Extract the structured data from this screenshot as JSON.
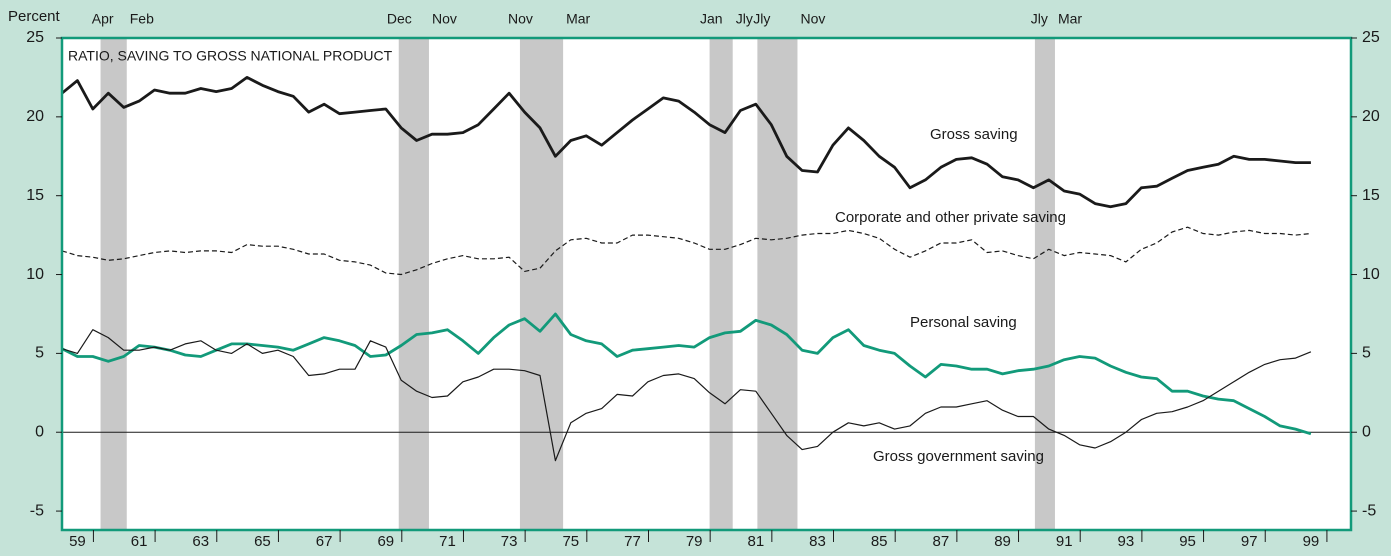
{
  "chart_data": {
    "type": "line",
    "title": "RATIO, SAVING TO GROSS NATIONAL PRODUCT",
    "y_axis_label": "Percent",
    "xlim": [
      1959,
      2000.8
    ],
    "xticks": [
      {
        "value": 1959.5,
        "label": "59"
      },
      {
        "value": 1961.5,
        "label": "61"
      },
      {
        "value": 1963.5,
        "label": "63"
      },
      {
        "value": 1965.5,
        "label": "65"
      },
      {
        "value": 1967.5,
        "label": "67"
      },
      {
        "value": 1969.5,
        "label": "69"
      },
      {
        "value": 1971.5,
        "label": "71"
      },
      {
        "value": 1973.5,
        "label": "73"
      },
      {
        "value": 1975.5,
        "label": "75"
      },
      {
        "value": 1977.5,
        "label": "77"
      },
      {
        "value": 1979.5,
        "label": "79"
      },
      {
        "value": 1981.5,
        "label": "81"
      },
      {
        "value": 1983.5,
        "label": "83"
      },
      {
        "value": 1985.5,
        "label": "85"
      },
      {
        "value": 1987.5,
        "label": "87"
      },
      {
        "value": 1989.5,
        "label": "89"
      },
      {
        "value": 1991.5,
        "label": "91"
      },
      {
        "value": 1993.5,
        "label": "93"
      },
      {
        "value": 1995.5,
        "label": "95"
      },
      {
        "value": 1997.5,
        "label": "97"
      },
      {
        "value": 1999.5,
        "label": "99"
      }
    ],
    "ylim": [
      -6.2,
      25
    ],
    "yticks": [
      -5,
      0,
      5,
      10,
      15,
      20,
      25
    ],
    "y2lim": [
      -6.2,
      25
    ],
    "y2ticks": [
      -5,
      0,
      5,
      10,
      15,
      20,
      25
    ],
    "recessions": [
      {
        "start": 1960.25,
        "end": 1961.1,
        "start_label": "Apr",
        "end_label": "Feb"
      },
      {
        "start": 1969.92,
        "end": 1970.9,
        "start_label": "Dec",
        "end_label": "Nov"
      },
      {
        "start": 1973.85,
        "end": 1975.25,
        "start_label": "Nov",
        "end_label": "Mar"
      },
      {
        "start": 1980.0,
        "end": 1980.75,
        "start_label": "Jan",
        "end_label": "Jly"
      },
      {
        "start": 1981.55,
        "end": 1982.85,
        "start_label": "Jly",
        "end_label": "Nov"
      },
      {
        "start": 1990.55,
        "end": 1991.2,
        "start_label": "Jly",
        "end_label": "Mar"
      }
    ],
    "x": [
      1959,
      1959.5,
      1960,
      1960.5,
      1961,
      1961.5,
      1962,
      1962.5,
      1963,
      1963.5,
      1964,
      1964.5,
      1965,
      1965.5,
      1966,
      1966.5,
      1967,
      1967.5,
      1968,
      1968.5,
      1969,
      1969.5,
      1970,
      1970.5,
      1971,
      1971.5,
      1972,
      1972.5,
      1973,
      1973.5,
      1974,
      1974.5,
      1975,
      1975.5,
      1976,
      1976.5,
      1977,
      1977.5,
      1978,
      1978.5,
      1979,
      1979.5,
      1980,
      1980.5,
      1981,
      1981.5,
      1982,
      1982.5,
      1983,
      1983.5,
      1984,
      1984.5,
      1985,
      1985.5,
      1986,
      1986.5,
      1987,
      1987.5,
      1988,
      1988.5,
      1989,
      1989.5,
      1990,
      1990.5,
      1991,
      1991.5,
      1992,
      1992.5,
      1993,
      1993.5,
      1994,
      1994.5,
      1995,
      1995.5,
      1996,
      1996.5,
      1997,
      1997.5,
      1998,
      1998.5,
      1999,
      1999.5
    ],
    "series": [
      {
        "name": "Gross saving",
        "color": "#1a1a1a",
        "style": "thick",
        "values": [
          21.5,
          22.3,
          20.5,
          21.5,
          20.6,
          21,
          21.7,
          21.5,
          21.5,
          21.8,
          21.6,
          21.8,
          22.5,
          22,
          21.6,
          21.3,
          20.3,
          20.8,
          20.2,
          20.3,
          20.4,
          20.5,
          19.3,
          18.5,
          18.9,
          18.9,
          19,
          19.5,
          20.5,
          21.5,
          20.3,
          19.3,
          17.5,
          18.5,
          18.8,
          18.2,
          19,
          19.8,
          20.5,
          21.2,
          21,
          20.3,
          19.5,
          19,
          20.4,
          20.8,
          19.5,
          17.5,
          16.6,
          16.5,
          18.2,
          19.3,
          18.5,
          17.5,
          16.8,
          15.5,
          16,
          16.8,
          17.3,
          17.4,
          17,
          16.2,
          16,
          15.5,
          16,
          15.3,
          15.1,
          14.5,
          14.3,
          14.5,
          15.5,
          15.6,
          16.1,
          16.6,
          16.8,
          17,
          17.5,
          17.3,
          17.3,
          17.2,
          17.1,
          17.1
        ]
      },
      {
        "name": "Corporate and other private saving",
        "color": "#1a1a1a",
        "style": "dashed",
        "values": [
          11.5,
          11.2,
          11.1,
          10.9,
          11,
          11.2,
          11.4,
          11.5,
          11.4,
          11.5,
          11.5,
          11.4,
          11.9,
          11.8,
          11.8,
          11.6,
          11.3,
          11.3,
          10.9,
          10.8,
          10.6,
          10.1,
          10,
          10.3,
          10.7,
          11,
          11.2,
          11,
          11,
          11.1,
          10.2,
          10.4,
          11.5,
          12.2,
          12.3,
          12,
          12,
          12.5,
          12.5,
          12.4,
          12.3,
          12,
          11.6,
          11.6,
          11.9,
          12.3,
          12.2,
          12.3,
          12.5,
          12.6,
          12.6,
          12.8,
          12.6,
          12.3,
          11.6,
          11.1,
          11.5,
          12,
          12,
          12.2,
          11.4,
          11.5,
          11.2,
          11,
          11.6,
          11.2,
          11.4,
          11.3,
          11.2,
          10.8,
          11.6,
          12,
          12.7,
          13,
          12.6,
          12.5,
          12.7,
          12.8,
          12.6,
          12.6,
          12.5,
          12.6
        ]
      },
      {
        "name": "Personal saving",
        "color": "#129a7a",
        "style": "thick",
        "values": [
          5.3,
          4.8,
          4.8,
          4.5,
          4.8,
          5.5,
          5.4,
          5.2,
          4.9,
          4.8,
          5.2,
          5.6,
          5.6,
          5.5,
          5.4,
          5.2,
          5.6,
          6,
          5.8,
          5.5,
          4.8,
          4.9,
          5.5,
          6.2,
          6.3,
          6.5,
          5.8,
          5,
          6,
          6.8,
          7.2,
          6.4,
          7.5,
          6.2,
          5.8,
          5.6,
          4.8,
          5.2,
          5.3,
          5.4,
          5.5,
          5.4,
          6,
          6.3,
          6.4,
          7.1,
          6.8,
          6.2,
          5.2,
          5,
          6,
          6.5,
          5.5,
          5.2,
          5,
          4.2,
          3.5,
          4.3,
          4.2,
          4,
          4,
          3.7,
          3.9,
          4,
          4.2,
          4.6,
          4.8,
          4.7,
          4.2,
          3.8,
          3.5,
          3.4,
          2.6,
          2.6,
          2.3,
          2.1,
          2,
          1.5,
          1,
          0.4,
          0.2,
          -0.1
        ]
      },
      {
        "name": "Gross government saving",
        "color": "#1a1a1a",
        "style": "thin",
        "values": [
          5.3,
          5,
          6.5,
          6,
          5.2,
          5.2,
          5.4,
          5.2,
          5.6,
          5.8,
          5.2,
          5,
          5.6,
          5,
          5.2,
          4.8,
          3.6,
          3.7,
          4,
          4,
          5.8,
          5.4,
          3.3,
          2.6,
          2.2,
          2.3,
          3.2,
          3.5,
          4,
          4,
          3.9,
          3.6,
          -1.8,
          0.6,
          1.2,
          1.5,
          2.4,
          2.3,
          3.2,
          3.6,
          3.7,
          3.4,
          2.5,
          1.8,
          2.7,
          2.6,
          1.2,
          -0.2,
          -1.1,
          -0.9,
          0,
          0.6,
          0.4,
          0.6,
          0.2,
          0.4,
          1.2,
          1.6,
          1.6,
          1.8,
          2,
          1.4,
          1,
          1,
          0.2,
          -0.2,
          -0.8,
          -1,
          -0.6,
          0,
          0.8,
          1.2,
          1.3,
          1.6,
          2,
          2.6,
          3.2,
          3.8,
          4.3,
          4.6,
          4.7,
          5.1
        ]
      }
    ]
  }
}
